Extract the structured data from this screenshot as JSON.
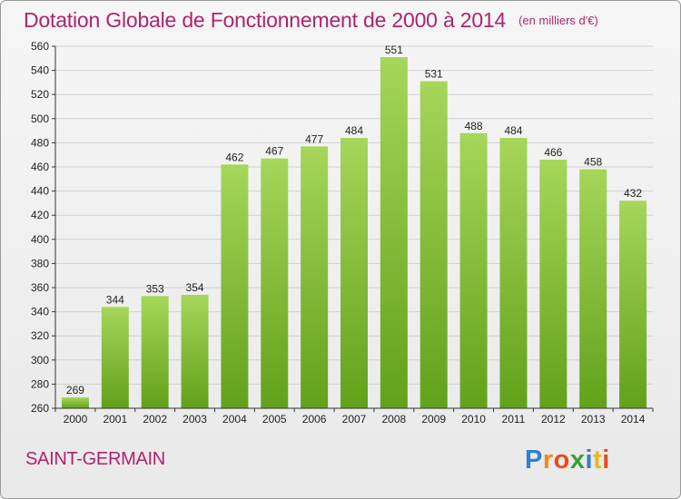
{
  "title": "Dotation Globale de Fonctionnement de 2000 à 2014",
  "unit": "(en milliers d'€)",
  "commune": "SAINT-GERMAIN",
  "logo_text": "Proxiti",
  "colors": {
    "title": "#b0236c",
    "bar_top": "#a6d65a",
    "bar_bottom": "#62a11a",
    "grid": "#d0d0d0",
    "axis": "#333333"
  },
  "chart_data": {
    "type": "bar",
    "title": "Dotation Globale de Fonctionnement de 2000 à 2014",
    "subtitle": "(en milliers d'€)",
    "xlabel": "",
    "ylabel": "",
    "categories": [
      "2000",
      "2001",
      "2002",
      "2003",
      "2004",
      "2005",
      "2006",
      "2007",
      "2008",
      "2009",
      "2010",
      "2011",
      "2012",
      "2013",
      "2014"
    ],
    "values": [
      269,
      344,
      353,
      354,
      462,
      467,
      477,
      484,
      551,
      531,
      488,
      484,
      466,
      458,
      432
    ],
    "ylim": [
      260,
      560
    ],
    "yticks": [
      260,
      280,
      300,
      320,
      340,
      360,
      380,
      400,
      420,
      440,
      460,
      480,
      500,
      520,
      540,
      560
    ],
    "grid": true,
    "legend": "none"
  }
}
